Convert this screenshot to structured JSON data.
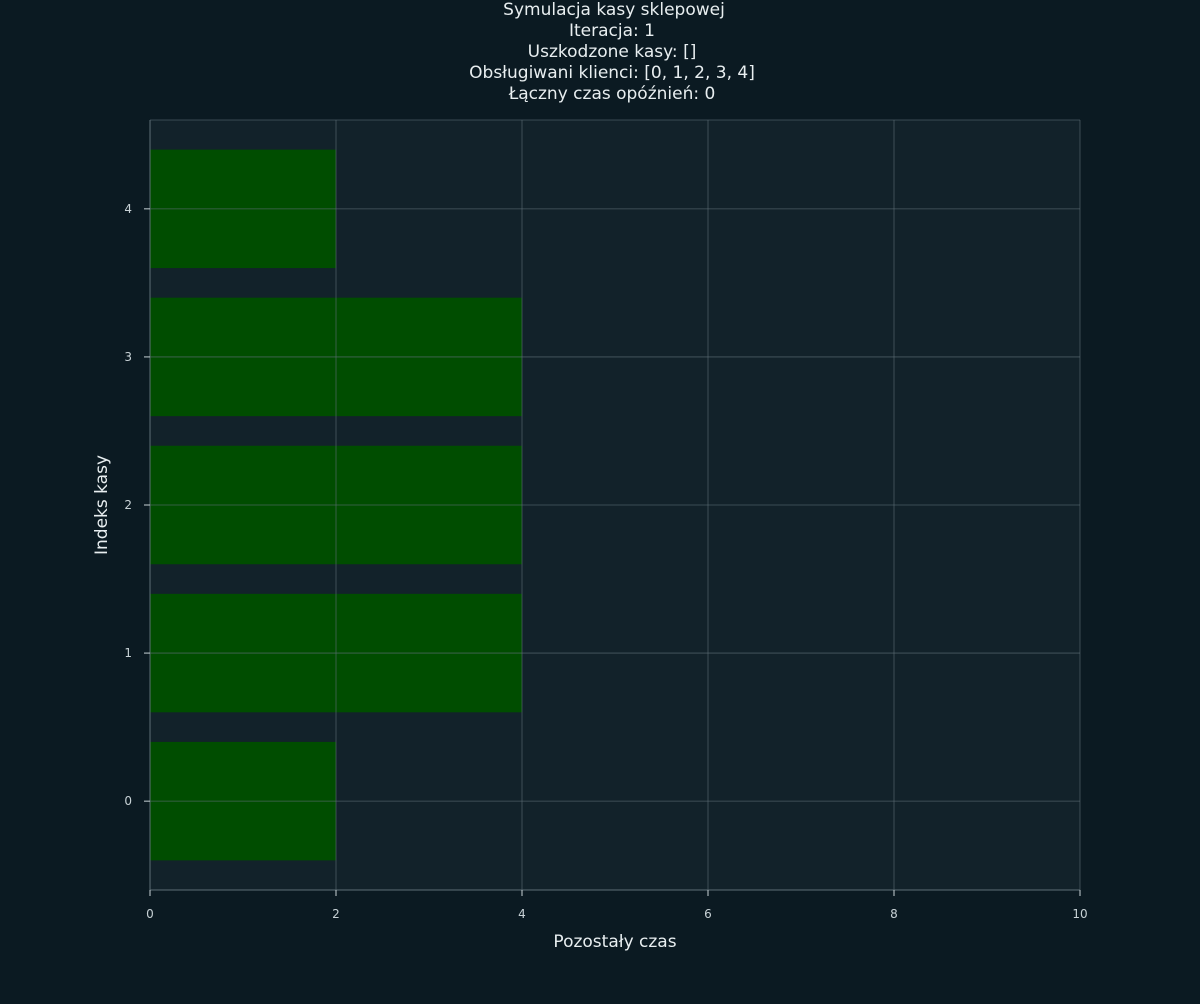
{
  "chart_data": {
    "type": "bar",
    "orientation": "horizontal",
    "title_lines": [
      "Symulacja kasy sklepowej",
      "Iteracja: 1",
      "Uszkodzone kasy: []",
      "Obsługiwani klienci: [0, 1, 2, 3, 4]",
      "Łączny czas opóźnień: 0"
    ],
    "xlabel": "Pozostały czas",
    "ylabel": "Indeks kasy",
    "categories": [
      "0",
      "1",
      "2",
      "3",
      "4"
    ],
    "values": [
      2,
      4,
      4,
      4,
      2
    ],
    "xlim": [
      0,
      10
    ],
    "ylim": [
      -0.6,
      4.6
    ],
    "x_ticks": [
      "0",
      "2",
      "4",
      "6",
      "8",
      "10"
    ],
    "y_ticks": [
      "0",
      "1",
      "2",
      "3",
      "4"
    ],
    "grid": true,
    "colors": {
      "background": "#0b1a22",
      "plot_background": "#12222a",
      "bar": "#004d00",
      "grid": "#5e6e75",
      "text": "#e8eef0",
      "tick_text": "#c8d2d6"
    }
  }
}
